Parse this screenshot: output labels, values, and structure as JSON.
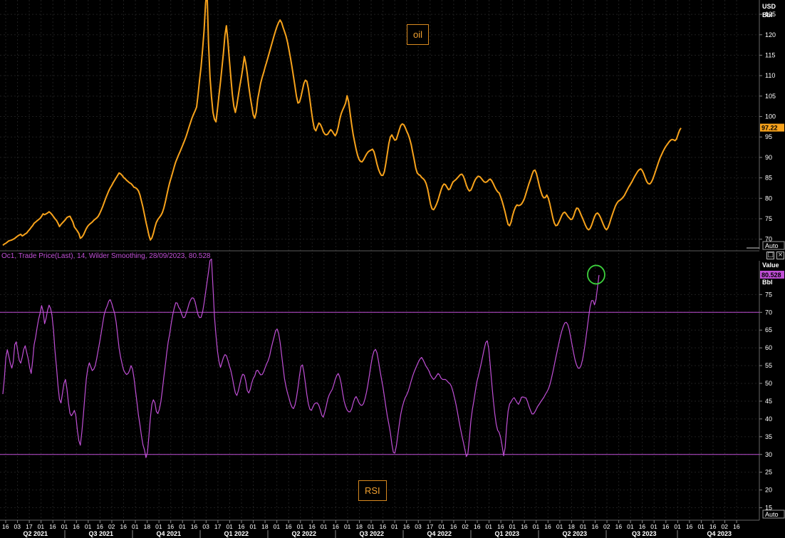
{
  "chart_data": [
    {
      "type": "line",
      "series": [
        {
          "name": "oil",
          "color": "#f7a21b",
          "values": [
            68.5,
            68.8,
            69.0,
            69.3,
            69.6,
            69.7,
            69.8,
            70.0,
            70.2,
            70.5,
            70.8,
            71.0,
            71.2,
            70.8,
            71.0,
            71.3,
            71.5,
            72.0,
            72.4,
            72.9,
            73.3,
            73.9,
            74.2,
            74.5,
            74.8,
            75.1,
            75.6,
            76.2,
            76.0,
            76.2,
            76.4,
            76.7,
            76.4,
            76.0,
            75.5,
            75.0,
            74.6,
            73.9,
            73.1,
            73.6,
            74.0,
            74.4,
            74.8,
            75.3,
            75.5,
            75.6,
            74.9,
            74.2,
            73.0,
            72.5,
            72.0,
            71.4,
            70.2,
            70.5,
            71.0,
            71.8,
            72.6,
            73.2,
            73.6,
            73.9,
            74.2,
            74.6,
            74.9,
            75.2,
            75.6,
            76.3,
            77.1,
            78.0,
            79.0,
            80.0,
            80.9,
            81.8,
            82.5,
            83.1,
            83.8,
            84.4,
            85.0,
            85.6,
            86.2,
            86.0,
            85.6,
            85.1,
            84.8,
            84.4,
            84.1,
            83.8,
            83.6,
            83.2,
            82.7,
            82.6,
            82.3,
            81.8,
            80.8,
            79.3,
            77.8,
            76.0,
            74.2,
            72.6,
            71.0,
            69.8,
            70.3,
            71.4,
            72.9,
            74.1,
            74.8,
            75.3,
            75.8,
            76.5,
            77.6,
            79.1,
            80.8,
            82.4,
            83.9,
            85.1,
            86.4,
            87.7,
            88.9,
            89.8,
            90.7,
            91.5,
            92.4,
            93.3,
            94.2,
            95.2,
            96.3,
            97.5,
            98.6,
            99.7,
            100.6,
            101.4,
            102.3,
            105.4,
            109.0,
            112.2,
            116.4,
            121.1,
            127.7,
            131.0,
            118.0,
            109.7,
            104.8,
            101.0,
            99.3,
            98.7,
            101.8,
            105.2,
            108.4,
            112.0,
            115.6,
            119.9,
            122.2,
            118.5,
            113.9,
            109.5,
            105.4,
            102.5,
            101.0,
            102.8,
            105.2,
            107.5,
            109.6,
            111.9,
            114.7,
            113.0,
            110.5,
            107.4,
            104.8,
            102.6,
            100.4,
            99.6,
            101.0,
            104.3,
            106.2,
            108.2,
            109.6,
            110.8,
            112.1,
            113.3,
            114.6,
            115.9,
            117.2,
            118.5,
            119.8,
            121.0,
            122.1,
            123.0,
            123.6,
            123.0,
            121.8,
            120.8,
            119.7,
            118.2,
            116.3,
            114.3,
            112.1,
            109.8,
            107.4,
            104.9,
            103.3,
            103.5,
            104.8,
            106.5,
            108.1,
            108.9,
            108.6,
            106.8,
            104.2,
            101.4,
            98.9,
            97.0,
            96.5,
            97.5,
            98.4,
            98.1,
            97.3,
            96.3,
            95.7,
            95.5,
            95.7,
            96.3,
            96.8,
            96.4,
            95.8,
            95.3,
            96.0,
            97.4,
            99.3,
            100.7,
            101.6,
            102.4,
            103.3,
            105.1,
            103.6,
            100.8,
            98.1,
            95.7,
            93.8,
            92.0,
            90.5,
            89.5,
            89.0,
            88.9,
            89.4,
            90.1,
            90.8,
            91.3,
            91.6,
            91.8,
            92.0,
            91.4,
            90.0,
            88.4,
            87.1,
            86.2,
            85.6,
            85.6,
            86.5,
            88.6,
            91.0,
            93.4,
            95.0,
            95.5,
            94.8,
            94.2,
            94.4,
            95.6,
            96.8,
            97.8,
            98.2,
            98.0,
            97.3,
            96.4,
            95.6,
            94.5,
            93.1,
            91.2,
            89.4,
            87.4,
            86.2,
            85.8,
            85.6,
            85.1,
            84.8,
            84.4,
            83.6,
            82.3,
            80.4,
            78.5,
            77.4,
            77.2,
            77.8,
            78.6,
            79.6,
            80.8,
            82.0,
            83.0,
            83.5,
            83.3,
            82.7,
            82.1,
            82.3,
            83.2,
            84.0,
            84.3,
            84.6,
            85.0,
            85.4,
            85.8,
            85.9,
            85.4,
            84.4,
            83.2,
            82.3,
            81.8,
            82.0,
            82.8,
            83.8,
            84.6,
            85.1,
            85.4,
            85.3,
            84.9,
            84.4,
            84.0,
            83.9,
            84.1,
            84.5,
            84.7,
            84.3,
            83.6,
            82.8,
            82.1,
            81.6,
            81.3,
            80.4,
            79.3,
            78.0,
            76.6,
            75.0,
            73.6,
            73.3,
            74.2,
            75.8,
            77.0,
            77.9,
            78.4,
            78.2,
            78.3,
            78.6,
            79.2,
            80.0,
            81.2,
            82.4,
            83.6,
            84.6,
            85.8,
            86.7,
            86.9,
            86.1,
            84.6,
            83.0,
            81.7,
            80.6,
            80.1,
            80.2,
            80.8,
            80.0,
            78.6,
            76.9,
            75.2,
            73.9,
            73.3,
            73.4,
            74.1,
            74.9,
            75.8,
            76.4,
            76.6,
            76.2,
            75.6,
            75.2,
            74.8,
            74.9,
            75.7,
            76.8,
            77.6,
            77.5,
            76.8,
            75.9,
            75.1,
            74.2,
            73.3,
            72.6,
            72.3,
            72.6,
            73.4,
            74.5,
            75.5,
            76.2,
            76.4,
            76.0,
            75.3,
            74.4,
            73.5,
            72.7,
            72.3,
            72.8,
            73.8,
            75.0,
            76.1,
            77.1,
            78.1,
            78.8,
            79.3,
            79.5,
            79.8,
            80.2,
            80.7,
            81.4,
            82.1,
            82.8,
            83.4,
            84.0,
            84.7,
            85.4,
            86.0,
            86.6,
            87.0,
            87.2,
            86.8,
            86.0,
            85.0,
            84.1,
            83.6,
            83.5,
            83.9,
            84.6,
            85.6,
            86.7,
            87.8,
            88.9,
            89.9,
            90.7,
            91.5,
            92.2,
            92.8,
            93.3,
            93.8,
            94.2,
            94.4,
            94.3,
            94.1,
            94.5,
            95.6,
            96.6,
            97.2
          ]
        }
      ],
      "y_axis": {
        "unit_line1": "USD",
        "unit_line2": "Bbl",
        "ticks": [
          70,
          75,
          80,
          85,
          90,
          95,
          100,
          105,
          110,
          115,
          120,
          125
        ],
        "ylim": [
          67.5,
          128.5
        ],
        "last_value_label": "97.22",
        "auto_label": "Auto"
      },
      "annotation": "oil"
    },
    {
      "type": "line",
      "legend": "Oc1, Trade Price(Last),  14,  Wilder Smoothing,  28/09/2023,  80.528",
      "series": [
        {
          "name": "RSI",
          "color": "#c04fd6",
          "values": [
            47.0,
            51.3,
            57.2,
            59.5,
            57.6,
            55.6,
            54.3,
            56.0,
            60.9,
            61.7,
            59.1,
            56.5,
            55.7,
            57.4,
            59.6,
            60.6,
            58.7,
            56.9,
            54.4,
            52.8,
            56.3,
            60.9,
            63.0,
            65.7,
            68.1,
            69.8,
            71.9,
            70.3,
            66.8,
            68.3,
            70.6,
            72.0,
            71.1,
            69.1,
            65.0,
            59.1,
            54.6,
            49.4,
            45.5,
            44.5,
            47.2,
            50.0,
            51.1,
            48.4,
            44.5,
            41.6,
            40.9,
            41.5,
            42.4,
            40.9,
            36.8,
            33.9,
            32.6,
            36.3,
            41.0,
            46.4,
            51.3,
            54.3,
            55.8,
            54.7,
            53.6,
            54.0,
            55.0,
            57.0,
            59.4,
            61.7,
            64.2,
            66.9,
            69.4,
            70.8,
            71.8,
            73.1,
            73.6,
            72.6,
            71.1,
            69.7,
            67.3,
            63.6,
            59.9,
            57.4,
            55.5,
            53.8,
            53.0,
            52.5,
            52.8,
            53.6,
            55.0,
            54.1,
            51.5,
            48.0,
            44.6,
            41.0,
            38.3,
            35.2,
            32.7,
            31.3,
            29.1,
            30.6,
            35.1,
            40.3,
            44.1,
            45.4,
            44.6,
            42.1,
            41.5,
            42.7,
            44.8,
            48.1,
            51.8,
            55.1,
            58.8,
            61.8,
            64.0,
            66.9,
            69.3,
            71.2,
            72.7,
            72.6,
            71.4,
            70.8,
            69.4,
            68.5,
            68.6,
            69.8,
            71.0,
            72.5,
            73.5,
            74.1,
            74.0,
            72.9,
            71.0,
            69.3,
            68.5,
            68.6,
            70.1,
            72.6,
            75.6,
            78.4,
            81.4,
            84.6,
            85.0,
            77.0,
            68.7,
            63.5,
            59.1,
            56.2,
            54.5,
            55.9,
            57.3,
            58.1,
            57.8,
            56.5,
            55.0,
            53.6,
            51.6,
            49.3,
            47.3,
            46.6,
            47.9,
            49.8,
            51.7,
            52.6,
            52.3,
            50.6,
            48.0,
            47.3,
            48.3,
            50.1,
            51.4,
            52.1,
            53.5,
            53.7,
            53.0,
            52.4,
            52.5,
            53.3,
            54.4,
            55.5,
            56.4,
            57.7,
            59.8,
            61.5,
            63.1,
            64.8,
            65.3,
            64.1,
            61.6,
            58.1,
            54.6,
            51.3,
            49.1,
            47.3,
            45.9,
            44.3,
            43.3,
            42.9,
            43.9,
            46.0,
            48.8,
            52.1,
            54.8,
            55.2,
            53.2,
            50.0,
            46.8,
            44.2,
            42.7,
            42.4,
            43.3,
            44.2,
            44.5,
            44.5,
            43.8,
            42.5,
            41.0,
            40.5,
            41.9,
            43.6,
            45.6,
            46.8,
            47.6,
            48.3,
            49.6,
            51.1,
            52.2,
            52.8,
            51.8,
            49.9,
            47.3,
            45.0,
            43.5,
            42.5,
            42.0,
            42.0,
            42.8,
            44.4,
            45.7,
            46.3,
            45.5,
            44.5,
            43.9,
            43.8,
            44.3,
            45.7,
            47.5,
            49.8,
            52.5,
            55.3,
            57.6,
            59.1,
            59.6,
            58.6,
            56.3,
            53.7,
            51.4,
            49.1,
            46.3,
            43.4,
            40.7,
            38.5,
            36.1,
            32.9,
            30.6,
            30.4,
            32.4,
            35.5,
            38.6,
            41.3,
            43.3,
            44.8,
            46.0,
            46.8,
            47.8,
            49.2,
            50.7,
            52.1,
            53.3,
            54.3,
            55.3,
            56.2,
            56.9,
            57.3,
            56.6,
            55.7,
            54.8,
            54.2,
            53.4,
            52.3,
            51.6,
            51.1,
            51.5,
            52.2,
            52.8,
            52.4,
            51.5,
            51.1,
            51.1,
            51.1,
            50.7,
            50.2,
            49.9,
            49.1,
            47.7,
            46.0,
            44.1,
            41.9,
            39.6,
            37.4,
            35.3,
            33.4,
            31.4,
            29.4,
            30.2,
            34.4,
            39.4,
            42.6,
            45.1,
            47.8,
            50.4,
            52.0,
            53.8,
            55.7,
            57.7,
            59.8,
            61.5,
            62.0,
            59.8,
            55.2,
            50.1,
            45.6,
            41.6,
            38.5,
            36.8,
            36.2,
            34.8,
            32.4,
            29.6,
            31.9,
            37.8,
            42.2,
            44.2,
            44.8,
            45.6,
            46.0,
            45.3,
            44.6,
            44.1,
            45.0,
            46.1,
            46.2,
            46.0,
            45.9,
            44.9,
            43.5,
            42.4,
            41.4,
            41.4,
            42.0,
            42.8,
            43.6,
            44.2,
            44.9,
            45.5,
            46.1,
            46.9,
            47.6,
            48.4,
            49.6,
            51.3,
            53.2,
            55.2,
            57.2,
            59.2,
            61.2,
            63.1,
            64.7,
            66.0,
            67.0,
            67.2,
            66.6,
            65.1,
            62.9,
            60.6,
            58.4,
            56.5,
            55.1,
            54.3,
            54.3,
            55.1,
            56.8,
            59.2,
            62.1,
            65.3,
            68.6,
            71.6,
            73.3,
            73.3,
            72.1,
            73.6,
            77.1,
            80.5
          ]
        }
      ],
      "y_axis": {
        "unit_line1": "Value",
        "unit_line2": "USD",
        "unit_line3": "Bbl",
        "ticks": [
          15,
          20,
          25,
          30,
          35,
          40,
          45,
          50,
          55,
          60,
          65,
          70,
          75
        ],
        "ylim": [
          11.5,
          84.5
        ],
        "last_value_label": "80.528",
        "auto_label": "Auto"
      },
      "reference_lines": [
        70,
        30
      ],
      "annotation": "RSI"
    }
  ],
  "x_axis": {
    "day_ticks": [
      "16",
      "03",
      "17",
      "01",
      "16",
      "01",
      "16",
      "01",
      "16",
      "02",
      "16",
      "01",
      "18",
      "01",
      "16",
      "01",
      "16",
      "03",
      "17",
      "01",
      "16",
      "01",
      "18",
      "01",
      "16",
      "01",
      "16",
      "01",
      "16",
      "01",
      "18",
      "01",
      "16",
      "01",
      "16",
      "03",
      "17",
      "01",
      "16",
      "02",
      "16",
      "01",
      "16",
      "01",
      "16",
      "01",
      "16",
      "01",
      "18",
      "01",
      "16",
      "02",
      "16",
      "01",
      "16",
      "01",
      "16",
      "01",
      "16",
      "01",
      "16",
      "02",
      "16"
    ],
    "quarters": [
      "Q2 2021",
      "Q3 2021",
      "Q4 2021",
      "Q1 2022",
      "Q2 2022",
      "Q3 2022",
      "Q4 2022",
      "Q1 2023",
      "Q2 2023",
      "Q3 2023",
      "Q4 2023"
    ]
  },
  "colors": {
    "background": "#000000",
    "grid": "#1f1f1f",
    "oil": "#f7a21b",
    "rsi": "#c04fd6",
    "highlight_circle": "#3dd13d"
  },
  "icons": [
    "maximize-icon",
    "close-icon"
  ]
}
